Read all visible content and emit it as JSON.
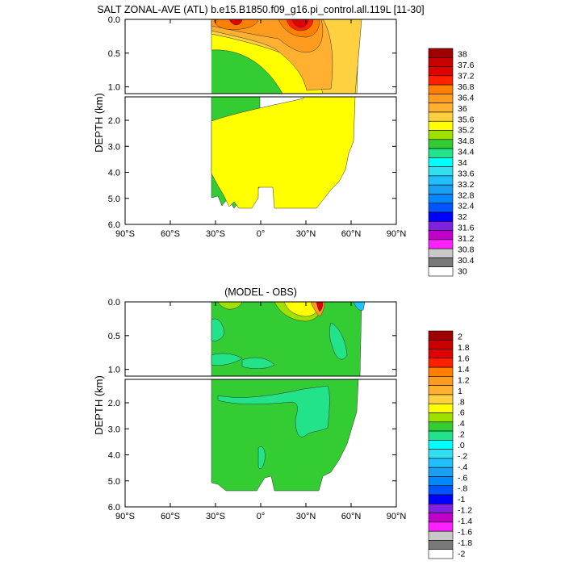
{
  "chart_data": [
    {
      "type": "contour",
      "title": "SALT ZONAL-AVE (ATL) b.e15.B1850.f09_g16.pi_control.all.119L [11-30]",
      "ylabel": "DEPTH (km)",
      "xlabel": "",
      "x_ticks": [
        "90°S",
        "60°S",
        "30°S",
        "0°",
        "30°N",
        "60°N",
        "90°N"
      ],
      "x_tick_values": [
        -90,
        -60,
        -30,
        0,
        30,
        60,
        90
      ],
      "y_ticks_upper": [
        "0.0",
        "0.5",
        "1.0"
      ],
      "y_tick_values_upper": [
        0,
        0.5,
        1.0
      ],
      "y_ticks_lower": [
        "2.0",
        "3.0",
        "4.0",
        "5.0",
        "6.0"
      ],
      "y_tick_values_lower": [
        2,
        3,
        4,
        5,
        6
      ],
      "xlim": [
        -90,
        90
      ],
      "ylim_upper": [
        0,
        1.1
      ],
      "ylim_lower": [
        1.1,
        6.0
      ],
      "grid": false,
      "legend": "right-colorbar",
      "colorbar": {
        "labels": [
          "38",
          "37.6",
          "37.2",
          "36.8",
          "36.4",
          "36",
          "35.6",
          "35.2",
          "34.8",
          "34.4",
          "34",
          "33.6",
          "33.2",
          "32.8",
          "32.4",
          "32",
          "31.6",
          "31.2",
          "30.8",
          "30.4",
          "30"
        ],
        "colors": [
          "#a00000",
          "#c80000",
          "#e00000",
          "#ff2000",
          "#ff8000",
          "#ff9c20",
          "#ffb030",
          "#ffd040",
          "#ffff00",
          "#a0e000",
          "#33cc33",
          "#22e28a",
          "#00ffff",
          "#30e0f0",
          "#20c0ff",
          "#1aa0f0",
          "#0088ff",
          "#0055ff",
          "#0000ff",
          "#8020e0",
          "#c000c8",
          "#ff20ff",
          "#c8c8c8",
          "#787878",
          "#ffffff"
        ]
      },
      "regions": [
        {
          "value": ">=38",
          "approx_lat": 25,
          "approx_depth_km": 0.05,
          "color": "#e00000"
        },
        {
          "value": "36.4-37",
          "approx_lat": -15,
          "approx_depth_km": 0.05,
          "color": "#ff8000"
        },
        {
          "value": "35.6-36",
          "approx_lat": 30,
          "approx_depth_km": 0.5,
          "color": "#ffb030"
        },
        {
          "value": "34.8-35.2",
          "approx_lat": 0,
          "approx_depth_km": 3.0,
          "color": "#ffff00"
        },
        {
          "value": "34.4-34.8",
          "approx_lat": -30,
          "approx_depth_km": 0.8,
          "color": "#33cc33"
        }
      ]
    },
    {
      "type": "contour",
      "title": "(MODEL - OBS)",
      "ylabel": "DEPTH (km)",
      "xlabel": "",
      "x_ticks": [
        "90°S",
        "60°S",
        "30°S",
        "0°",
        "30°N",
        "60°N",
        "90°N"
      ],
      "x_tick_values": [
        -90,
        -60,
        -30,
        0,
        30,
        60,
        90
      ],
      "y_ticks_upper": [
        "0.0",
        "0.5",
        "1.0"
      ],
      "y_tick_values_upper": [
        0,
        0.5,
        1.0
      ],
      "y_ticks_lower": [
        "2.0",
        "3.0",
        "4.0",
        "5.0",
        "6.0"
      ],
      "y_tick_values_lower": [
        2,
        3,
        4,
        5,
        6
      ],
      "xlim": [
        -90,
        90
      ],
      "ylim_upper": [
        0,
        1.1
      ],
      "ylim_lower": [
        1.1,
        6.0
      ],
      "grid": false,
      "legend": "right-colorbar",
      "colorbar": {
        "labels": [
          "2",
          "1.8",
          "1.6",
          "1.4",
          "1.2",
          "1",
          ".8",
          ".6",
          ".4",
          ".2",
          ".0",
          "-.2",
          "-.4",
          "-.6",
          "-.8",
          "-1",
          "-1.2",
          "-1.4",
          "-1.6",
          "-1.8",
          "-2"
        ],
        "colors": [
          "#a00000",
          "#c80000",
          "#e00000",
          "#ff2000",
          "#ff8000",
          "#ff9c20",
          "#ffb030",
          "#ffd040",
          "#ffff00",
          "#a0e000",
          "#33cc33",
          "#22e28a",
          "#00ffff",
          "#30e0f0",
          "#20c0ff",
          "#1aa0f0",
          "#0088ff",
          "#0055ff",
          "#0000ff",
          "#8020e0",
          "#c000c8",
          "#ff20ff",
          "#c8c8c8",
          "#787878",
          "#ffffff"
        ]
      },
      "regions": [
        {
          "value": "0.2-0.4",
          "approx_lat": 0,
          "approx_depth_km": 3.5,
          "color": "#33cc33"
        },
        {
          "value": "0-0.2",
          "approx_lat": 20,
          "approx_depth_km": 2.0,
          "color": "#22e28a"
        },
        {
          "value": "0.6-1.0",
          "approx_lat": 20,
          "approx_depth_km": 0.05,
          "color": "#ffb030"
        }
      ]
    }
  ]
}
